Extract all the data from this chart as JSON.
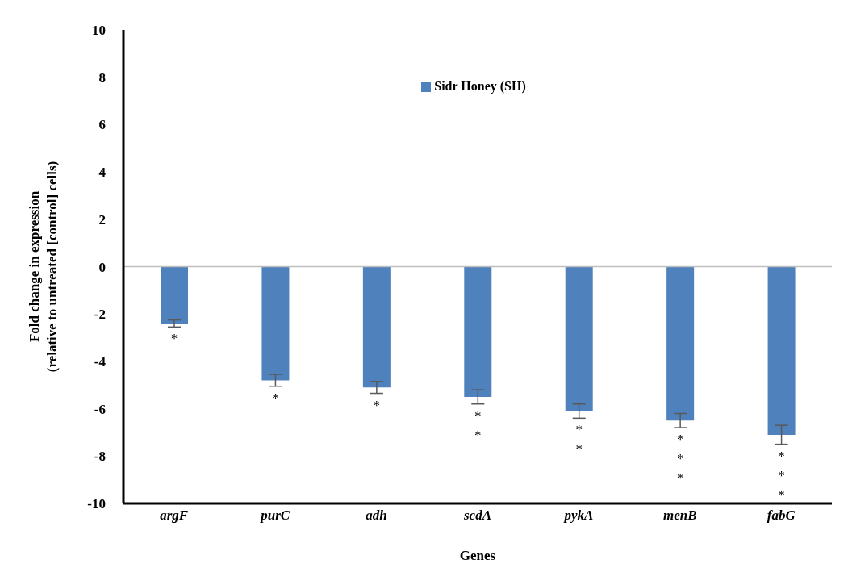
{
  "chart_data": {
    "type": "bar",
    "xlabel": "Genes",
    "ylabel": "Fold change in expression\n(relative to untreated [control] cells)",
    "categories": [
      "argF",
      "purC",
      "adh",
      "scdA",
      "pykA",
      "menB",
      "fabG"
    ],
    "series": [
      {
        "name": "Sidr Honey (SH)",
        "color": "#4f81bd",
        "values": [
          -2.4,
          -4.8,
          -5.1,
          -5.5,
          -6.1,
          -6.5,
          -7.1
        ],
        "errors": [
          0.15,
          0.25,
          0.25,
          0.3,
          0.3,
          0.3,
          0.4
        ]
      }
    ],
    "ylim": [
      -10,
      10
    ],
    "yticks": [
      -10,
      -8,
      -6,
      -4,
      -2,
      0,
      2,
      4,
      6,
      8,
      10
    ],
    "grid": false,
    "legend": "top",
    "ref_lines": [
      {
        "axis": "y",
        "value": 0,
        "color": "#bfbfbf"
      }
    ],
    "annotations": [
      "*",
      "*",
      "*",
      "**",
      "**",
      "***",
      "***"
    ]
  }
}
